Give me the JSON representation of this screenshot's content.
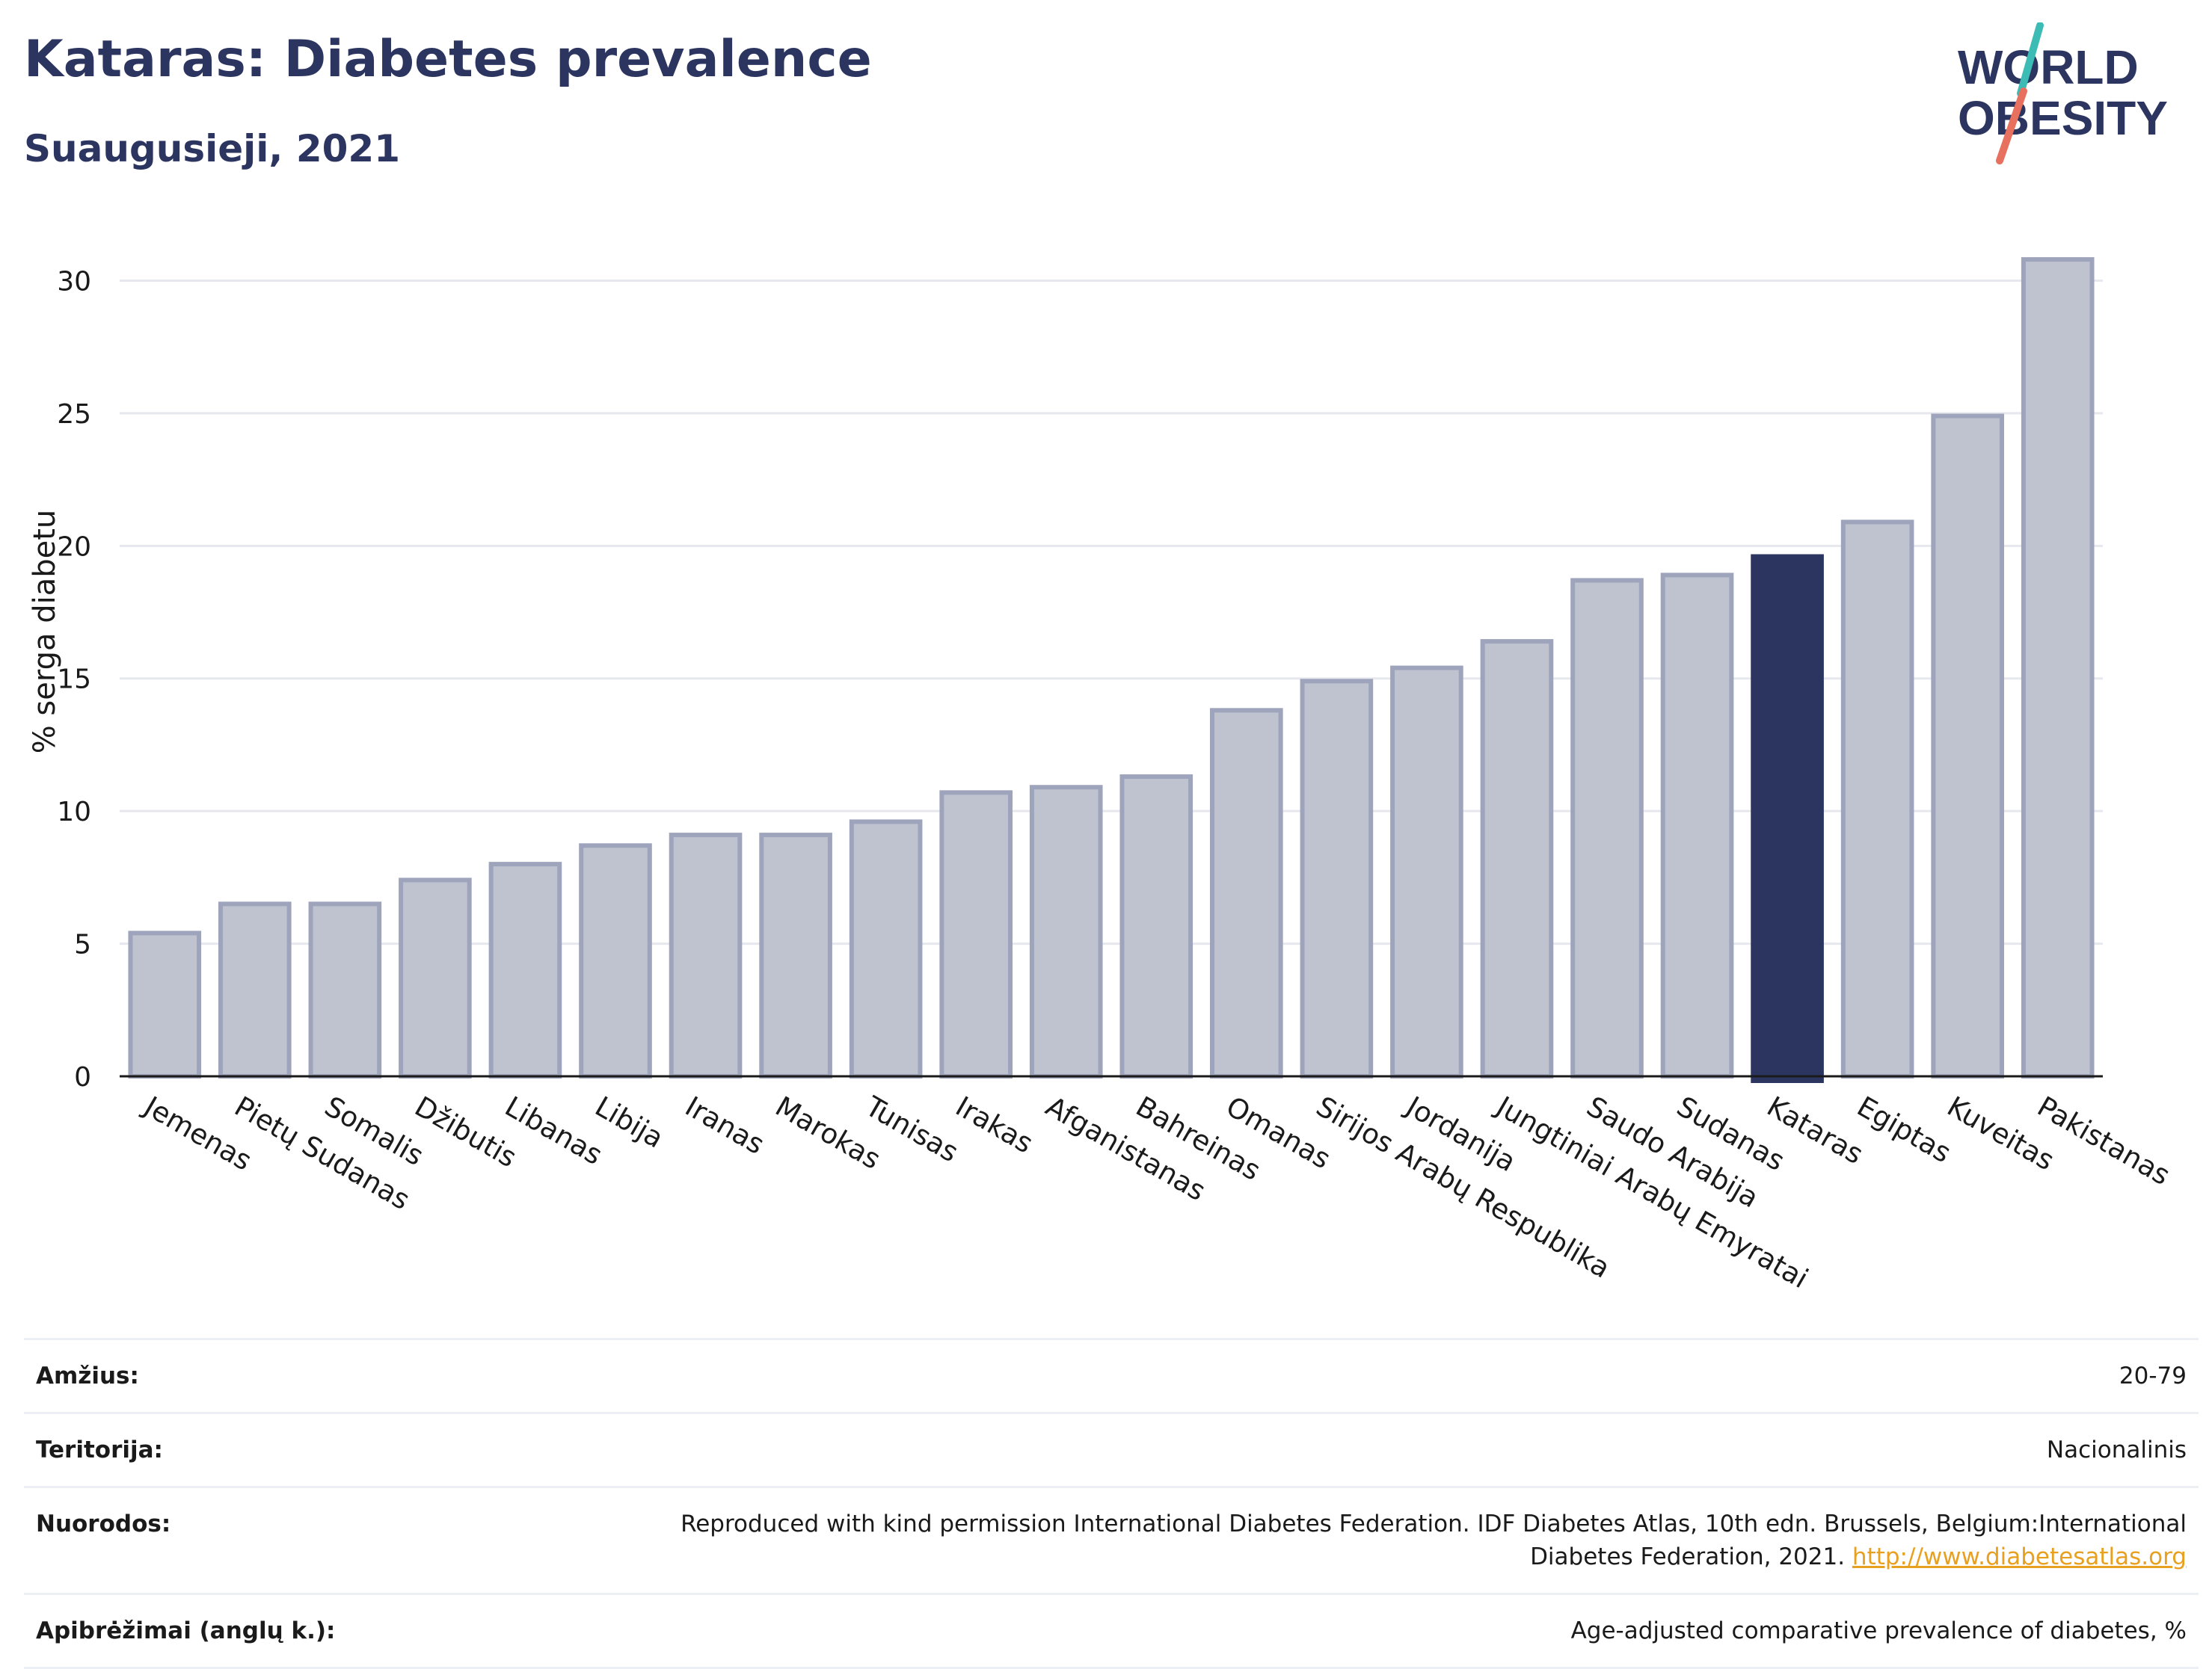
{
  "header": {
    "title": "Kataras: Diabetes prevalence",
    "subtitle": "Suaugusieji, 2021"
  },
  "logo": {
    "line1": "WORLD",
    "line2": "OBESITY"
  },
  "chart_data": {
    "type": "bar",
    "ylabel": "% serga diabetu",
    "ylim": [
      0,
      31
    ],
    "yticks": [
      0,
      5,
      10,
      15,
      20,
      25,
      30
    ],
    "grid": true,
    "highlight_category": "Kataras",
    "colors": {
      "bar": "#bfc3d0",
      "bar_edge": "#9ea4bb",
      "highlight": "#2b3560",
      "grid": "#e6e8ee",
      "axis": "#1a1a1a"
    },
    "categories": [
      "Jemenas",
      "Pietų Sudanas",
      "Somalis",
      "Džibutis",
      "Libanas",
      "Libija",
      "Iranas",
      "Marokas",
      "Tunisas",
      "Irakas",
      "Afganistanas",
      "Bahreinas",
      "Omanas",
      "Sirijos Arabų Respublika",
      "Jordanija",
      "Jungtiniai Arabų Emyratai",
      "Saudo Arabija",
      "Sudanas",
      "Kataras",
      "Egiptas",
      "Kuveitas",
      "Pakistanas"
    ],
    "values": [
      5.4,
      6.5,
      6.5,
      7.4,
      8.0,
      8.7,
      9.1,
      9.1,
      9.6,
      10.7,
      10.9,
      11.3,
      13.8,
      14.9,
      15.4,
      16.4,
      18.7,
      18.9,
      19.6,
      20.9,
      24.9,
      30.8
    ]
  },
  "meta": [
    {
      "key": "Amžius:",
      "value": "20-79"
    },
    {
      "key": "Teritorija:",
      "value": "Nacionalinis"
    },
    {
      "key": "Nuorodos:",
      "value": "Reproduced with kind permission International Diabetes Federation.  IDF Diabetes Atlas, 10th edn. Brussels, Belgium:International Diabetes Federation, 2021. ",
      "link": "http://www.diabetesatlas.org"
    },
    {
      "key": "Apibrėžimai (anglų k.):",
      "value": "Age-adjusted comparative prevalence of diabetes, %"
    }
  ]
}
